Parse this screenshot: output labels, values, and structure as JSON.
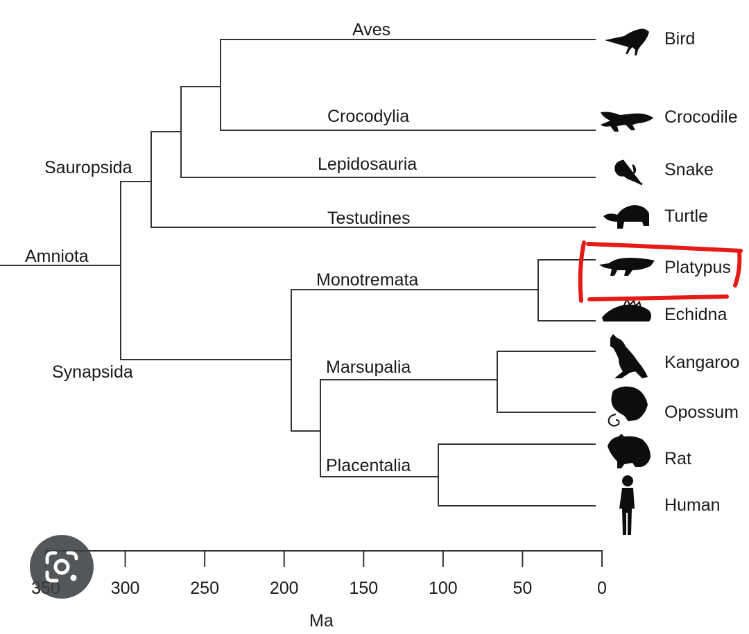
{
  "clades": {
    "amniota": "Amniota",
    "sauropsida": "Sauropsida",
    "synapsida": "Synapsida",
    "aves": "Aves",
    "crocodylia": "Crocodylia",
    "lepidosauria": "Lepidosauria",
    "testudines": "Testudines",
    "monotremata": "Monotremata",
    "marsupalia": "Marsupalia",
    "placentalia": "Placentalia"
  },
  "taxa": {
    "bird": "Bird",
    "crocodile": "Crocodile",
    "snake": "Snake",
    "turtle": "Turtle",
    "platypus": "Platypus",
    "echidna": "Echidna",
    "kangaroo": "Kangaroo",
    "opossum": "Opossum",
    "rat": "Rat",
    "human": "Human"
  },
  "divergence_ma": {
    "amniota": 312,
    "sauropsida_turtle": 290,
    "sauropsida_lepidosauria": 270,
    "aves_crocodylia": 245,
    "mammalia": 200,
    "monotremata": 40,
    "therians": 180,
    "marsupalia": 65,
    "placentalia": 105
  },
  "axis": {
    "ticks": [
      "350",
      "300",
      "250",
      "200",
      "150",
      "100",
      "50",
      "0"
    ],
    "title": "Ma"
  },
  "colors": {
    "line": "#333333",
    "text": "#1a1a1a",
    "highlight": "#e41b17"
  },
  "icons": {
    "lens": "google-lens-icon"
  }
}
